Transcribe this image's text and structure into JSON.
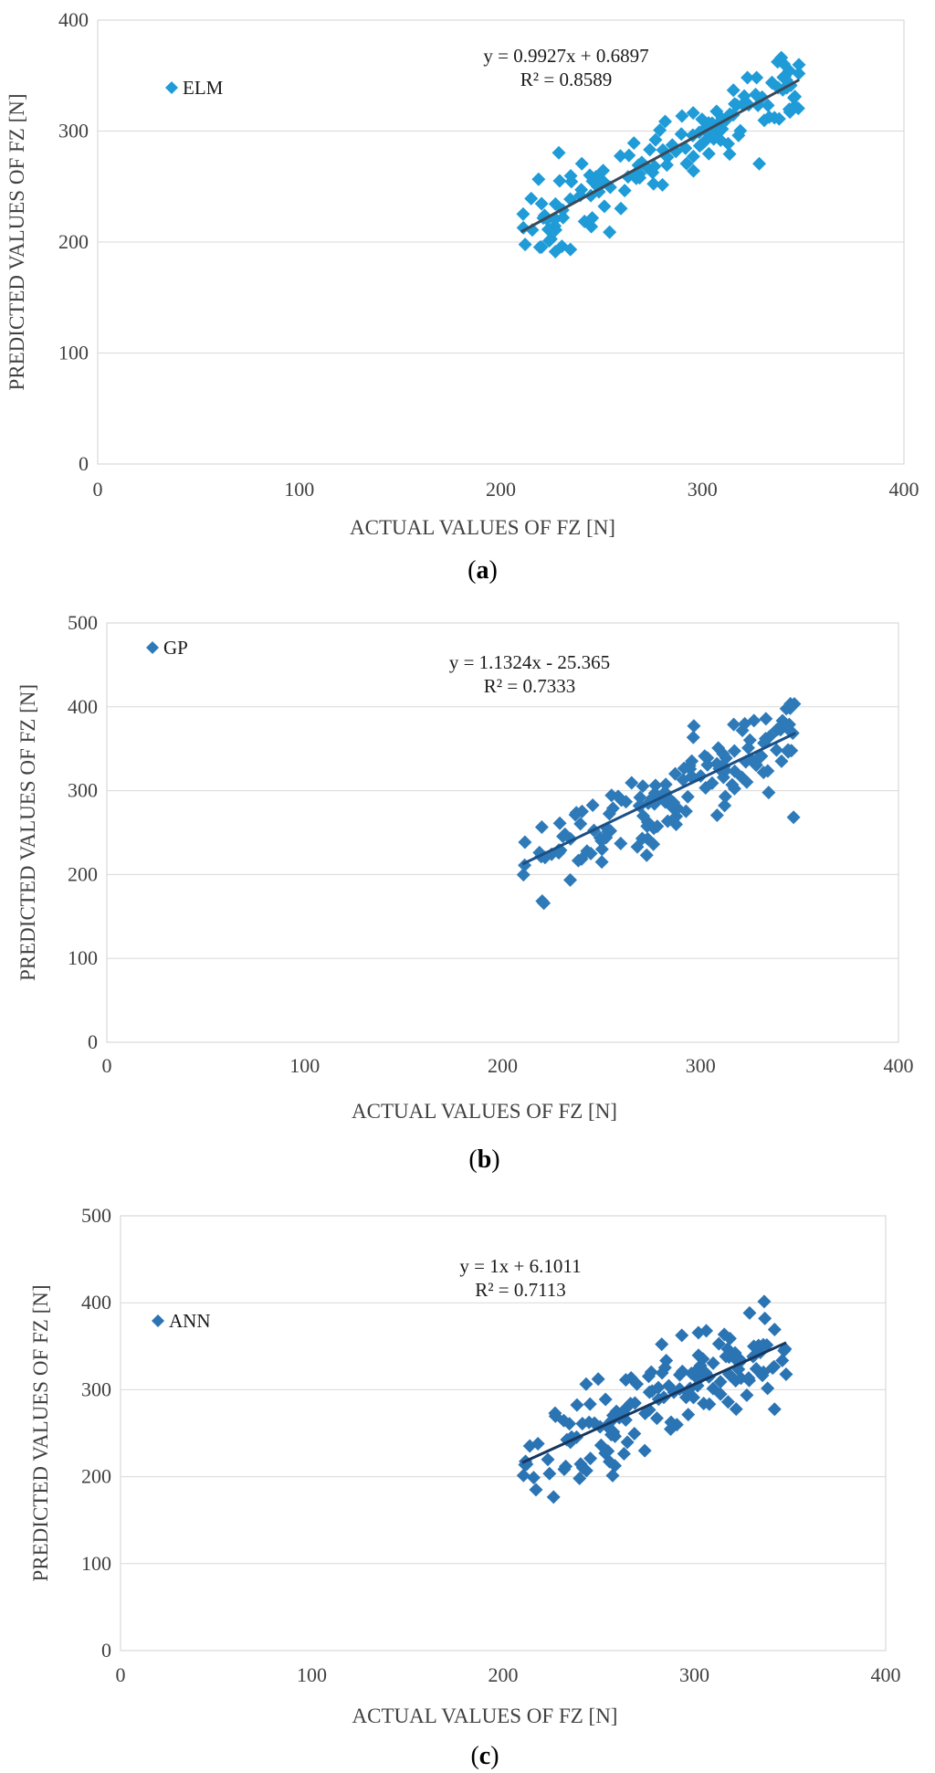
{
  "chart_data": [
    {
      "type": "scatter",
      "panel_label": "a",
      "xlabel": "ACTUAL VALUES OF FZ  [N]",
      "ylabel": "PREDICTED VALUES OF FZ [N]",
      "xlim": [
        0,
        400
      ],
      "ylim": [
        0,
        400
      ],
      "xticks": [
        "0",
        "100",
        "200",
        "300",
        "400"
      ],
      "yticks": [
        "0",
        "100",
        "200",
        "300",
        "400"
      ],
      "series": [
        {
          "name": "ELM",
          "color": "#1f9bd7",
          "trend_color": "#3a4a5a"
        }
      ],
      "trendline": {
        "slope": 0.9927,
        "intercept": 0.6897,
        "x_range": [
          210,
          348
        ]
      },
      "equation": "y = 0.9927x  + 0.6897",
      "r_squared": "R² = 0.8589",
      "legend": "top-left",
      "grid": true
    },
    {
      "type": "scatter",
      "panel_label": "b",
      "xlabel": "ACTUAL VALUES OF FZ  [N]",
      "ylabel": "PREDICTED VALUES OF FZ [N]",
      "xlim": [
        0,
        400
      ],
      "ylim": [
        0,
        500
      ],
      "xticks": [
        "0",
        "100",
        "200",
        "300",
        "400"
      ],
      "yticks": [
        "0",
        "100",
        "200",
        "300",
        "400",
        "500"
      ],
      "series": [
        {
          "name": "GP",
          "color": "#2e7ab8",
          "trend_color": "#1c4f86"
        }
      ],
      "trendline": {
        "slope": 1.1324,
        "intercept": -25.365,
        "x_range": [
          210,
          348
        ]
      },
      "equation": "y = 1.1324x - 25.365",
      "r_squared": "R² = 0.7333",
      "legend": "top-left",
      "grid": true
    },
    {
      "type": "scatter",
      "panel_label": "c",
      "xlabel": "ACTUAL VALUES OF FZ  [N]",
      "ylabel": "PREDICTED VALUES OF FZ [N]",
      "xlim": [
        0,
        400
      ],
      "ylim": [
        0,
        500
      ],
      "xticks": [
        "0",
        "100",
        "200",
        "300",
        "400"
      ],
      "yticks": [
        "0",
        "100",
        "200",
        "300",
        "400",
        "500"
      ],
      "series": [
        {
          "name": "ANN",
          "color": "#2b74b4",
          "trend_color": "#17375f"
        }
      ],
      "trendline": {
        "slope": 1.0,
        "intercept": 6.1011,
        "x_range": [
          210,
          348
        ]
      },
      "equation": "y = 1x + 6.1011",
      "r_squared": "R² = 0.7113",
      "legend": "top-left",
      "grid": true
    }
  ]
}
